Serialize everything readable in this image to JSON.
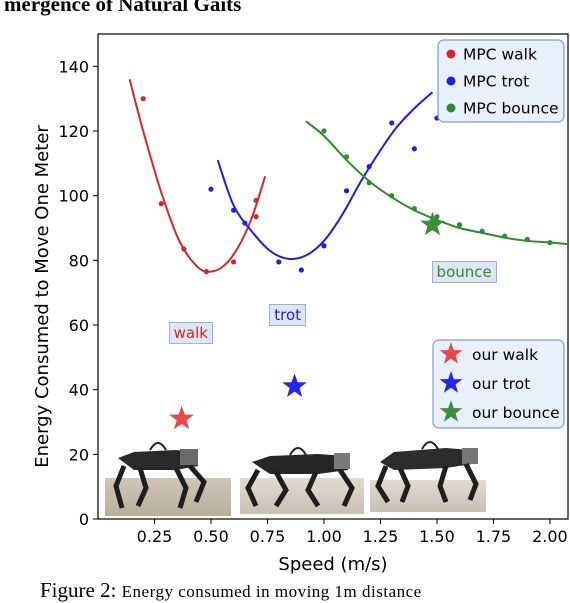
{
  "heading": "mergence of Natural Gaits",
  "caption": {
    "prefix": "Figure 2:",
    "rest": "Energy consumed in moving 1m distance"
  },
  "chart_data": {
    "type": "scatter",
    "xlabel": "Speed (m/s)",
    "ylabel": "Energy Consumed to Move One Meter",
    "xlim": [
      0.0,
      2.08
    ],
    "ylim": [
      0,
      150
    ],
    "xticks": [
      0.25,
      0.5,
      0.75,
      1.0,
      1.25,
      1.5,
      1.75,
      2.0
    ],
    "xtick_labels": [
      "0.25",
      "0.50",
      "0.75",
      "1.00",
      "1.25",
      "1.50",
      "1.75",
      "2.00"
    ],
    "yticks": [
      0,
      20,
      40,
      60,
      80,
      100,
      120,
      140
    ],
    "ytick_labels": [
      "0",
      "20",
      "40",
      "60",
      "80",
      "100",
      "120",
      "140"
    ],
    "grid": false,
    "series": [
      {
        "name": "MPC walk",
        "color": "#d62728",
        "points": [
          [
            0.2,
            130
          ],
          [
            0.28,
            97.5
          ],
          [
            0.38,
            83.5
          ],
          [
            0.48,
            76.5
          ],
          [
            0.6,
            79.5
          ],
          [
            0.7,
            93.5
          ],
          [
            0.7,
            98.5
          ]
        ],
        "fit": [
          [
            0.14,
            136
          ],
          [
            0.2,
            120
          ],
          [
            0.28,
            101
          ],
          [
            0.36,
            86
          ],
          [
            0.44,
            78
          ],
          [
            0.5,
            76.5
          ],
          [
            0.56,
            78.5
          ],
          [
            0.62,
            84
          ],
          [
            0.68,
            93
          ],
          [
            0.74,
            106
          ]
        ]
      },
      {
        "name": "MPC trot",
        "color": "#1f1fe0",
        "points": [
          [
            0.5,
            102
          ],
          [
            0.6,
            95.5
          ],
          [
            0.65,
            91.5
          ],
          [
            0.8,
            79.5
          ],
          [
            0.9,
            77
          ],
          [
            1.0,
            84.5
          ],
          [
            1.1,
            101.5
          ],
          [
            1.2,
            109
          ],
          [
            1.3,
            122.5
          ],
          [
            1.4,
            114.5
          ],
          [
            1.5,
            124
          ]
        ],
        "fit": [
          [
            0.53,
            111
          ],
          [
            0.6,
            97
          ],
          [
            0.68,
            89
          ],
          [
            0.76,
            83
          ],
          [
            0.84,
            80.5
          ],
          [
            0.92,
            81.5
          ],
          [
            1.0,
            86
          ],
          [
            1.08,
            94
          ],
          [
            1.16,
            104
          ],
          [
            1.24,
            113
          ],
          [
            1.32,
            121
          ],
          [
            1.4,
            127
          ],
          [
            1.48,
            132
          ]
        ]
      },
      {
        "name": "MPC bounce",
        "color": "#2e8b2e",
        "points": [
          [
            1.0,
            120
          ],
          [
            1.1,
            112
          ],
          [
            1.2,
            104
          ],
          [
            1.3,
            100
          ],
          [
            1.4,
            96
          ],
          [
            1.5,
            93.5
          ],
          [
            1.6,
            91
          ],
          [
            1.7,
            89
          ],
          [
            1.8,
            87.5
          ],
          [
            1.9,
            86.5
          ],
          [
            2.0,
            85.5
          ]
        ],
        "fit": [
          [
            0.92,
            123
          ],
          [
            1.0,
            118.5
          ],
          [
            1.1,
            111
          ],
          [
            1.2,
            104.5
          ],
          [
            1.3,
            99.5
          ],
          [
            1.4,
            95.5
          ],
          [
            1.5,
            92.5
          ],
          [
            1.6,
            90
          ],
          [
            1.7,
            88.5
          ],
          [
            1.8,
            87
          ],
          [
            1.9,
            86
          ],
          [
            2.0,
            85.5
          ],
          [
            2.08,
            85
          ]
        ]
      }
    ],
    "stars": [
      {
        "name": "our walk",
        "color": "#e84848",
        "x": 0.37,
        "y": 31
      },
      {
        "name": "our trot",
        "color": "#2525f0",
        "x": 0.87,
        "y": 41
      },
      {
        "name": "our bounce",
        "color": "#3a8f3a",
        "x": 1.48,
        "y": 91
      }
    ],
    "annotations": [
      {
        "text": "walk",
        "color": "#d62728",
        "x": 0.41,
        "y": 57.5
      },
      {
        "text": "trot",
        "color": "#1f1fe0",
        "x": 0.84,
        "y": 63
      },
      {
        "text": "bounce",
        "color": "#2e8b2e",
        "x": 1.62,
        "y": 76.5
      }
    ],
    "legend_placement": "top-right"
  }
}
